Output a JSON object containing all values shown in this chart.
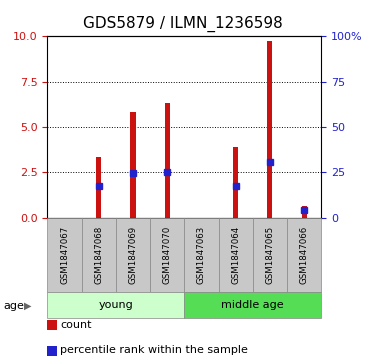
{
  "title": "GDS5879 / ILMN_1236598",
  "samples": [
    "GSM1847067",
    "GSM1847068",
    "GSM1847069",
    "GSM1847070",
    "GSM1847063",
    "GSM1847064",
    "GSM1847065",
    "GSM1847066"
  ],
  "count_values": [
    0.0,
    3.35,
    5.85,
    6.35,
    0.0,
    3.9,
    9.75,
    0.65
  ],
  "percentile_values": [
    0.0,
    1.75,
    2.45,
    2.5,
    0.0,
    1.75,
    3.05,
    0.45
  ],
  "groups": [
    {
      "label": "young",
      "indices": [
        0,
        1,
        2,
        3
      ],
      "color": "#ccffcc"
    },
    {
      "label": "middle age",
      "indices": [
        4,
        5,
        6,
        7
      ],
      "color": "#55dd55"
    }
  ],
  "left_ylim": [
    0,
    10
  ],
  "right_ylim": [
    0,
    100
  ],
  "left_yticks": [
    0,
    2.5,
    5,
    7.5,
    10
  ],
  "right_yticks": [
    0,
    25,
    50,
    75,
    100
  ],
  "right_yticklabels": [
    "0",
    "25",
    "50",
    "75",
    "100%"
  ],
  "bar_color": "#cc1111",
  "percentile_color": "#2222cc",
  "bar_width": 0.15,
  "background_color": "#ffffff",
  "title_fontsize": 11,
  "tick_fontsize": 8,
  "label_fontsize": 8,
  "legend_fontsize": 8,
  "sample_box_color": "#c8c8c8",
  "sample_border_color": "#888888"
}
